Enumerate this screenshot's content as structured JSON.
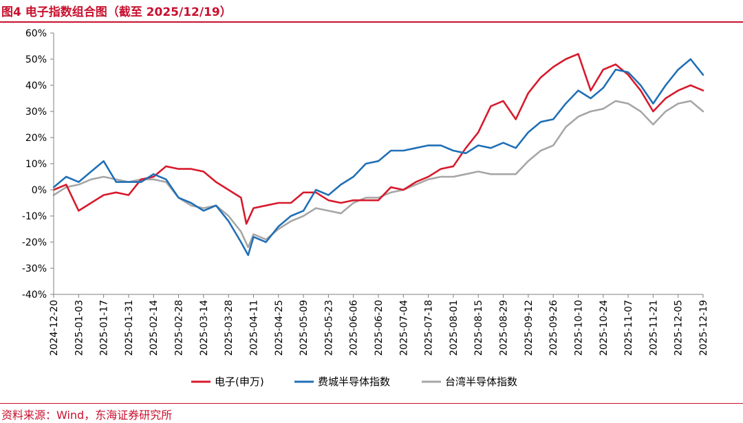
{
  "header": {
    "title": "图4 电子指数组合图（截至 2025/12/19）"
  },
  "footer": {
    "source": "资料来源：Wind，东海证券研究所"
  },
  "chart_data": {
    "type": "line",
    "title": "图4 电子指数组合图（截至 2025/12/19）",
    "xlabel": "",
    "ylabel": "",
    "ylim": [
      -40,
      60
    ],
    "y_ticks": [
      60,
      50,
      40,
      30,
      20,
      10,
      0,
      -10,
      -20,
      -30,
      -40
    ],
    "y_tick_labels": [
      "60%",
      "50%",
      "40%",
      "30%",
      "20%",
      "10%",
      "0%",
      "-10%",
      "-20%",
      "-30%",
      "-40%"
    ],
    "x_tick_labels": [
      "2024-12-20",
      "2025-01-03",
      "2025-01-17",
      "2025-01-31",
      "2025-02-14",
      "2025-02-28",
      "2025-03-14",
      "2025-03-28",
      "2025-04-11",
      "2025-04-25",
      "2025-05-09",
      "2025-05-23",
      "2025-06-06",
      "2025-06-20",
      "2025-07-04",
      "2025-07-18",
      "2025-08-01",
      "2025-08-15",
      "2025-08-29",
      "2025-09-12",
      "2025-09-26",
      "2025-10-10",
      "2025-10-24",
      "2025-11-07",
      "2025-11-21",
      "2025-12-05",
      "2025-12-19"
    ],
    "x_start": "2024-12-20",
    "x_end": "2025-12-19",
    "legend_position": "bottom",
    "grid": false,
    "series": [
      {
        "name": "电子(申万)",
        "color": "#d7192c",
        "points": [
          [
            "2024-12-20",
            0
          ],
          [
            "2024-12-27",
            2
          ],
          [
            "2025-01-03",
            -8
          ],
          [
            "2025-01-10",
            -5
          ],
          [
            "2025-01-17",
            -2
          ],
          [
            "2025-01-24",
            -1
          ],
          [
            "2025-01-31",
            -2
          ],
          [
            "2025-02-07",
            4
          ],
          [
            "2025-02-14",
            5
          ],
          [
            "2025-02-21",
            9
          ],
          [
            "2025-02-28",
            8
          ],
          [
            "2025-03-07",
            8
          ],
          [
            "2025-03-14",
            7
          ],
          [
            "2025-03-21",
            3
          ],
          [
            "2025-03-28",
            0
          ],
          [
            "2025-04-04",
            -3
          ],
          [
            "2025-04-07",
            -13
          ],
          [
            "2025-04-11",
            -7
          ],
          [
            "2025-04-18",
            -6
          ],
          [
            "2025-04-25",
            -5
          ],
          [
            "2025-05-02",
            -5
          ],
          [
            "2025-05-09",
            -1
          ],
          [
            "2025-05-16",
            -1
          ],
          [
            "2025-05-23",
            -4
          ],
          [
            "2025-05-30",
            -5
          ],
          [
            "2025-06-06",
            -4
          ],
          [
            "2025-06-13",
            -4
          ],
          [
            "2025-06-20",
            -4
          ],
          [
            "2025-06-27",
            1
          ],
          [
            "2025-07-04",
            0
          ],
          [
            "2025-07-11",
            3
          ],
          [
            "2025-07-18",
            5
          ],
          [
            "2025-07-25",
            8
          ],
          [
            "2025-08-01",
            9
          ],
          [
            "2025-08-08",
            16
          ],
          [
            "2025-08-15",
            22
          ],
          [
            "2025-08-22",
            32
          ],
          [
            "2025-08-29",
            34
          ],
          [
            "2025-09-05",
            27
          ],
          [
            "2025-09-12",
            37
          ],
          [
            "2025-09-19",
            43
          ],
          [
            "2025-09-26",
            47
          ],
          [
            "2025-10-03",
            50
          ],
          [
            "2025-10-10",
            52
          ],
          [
            "2025-10-17",
            38
          ],
          [
            "2025-10-24",
            46
          ],
          [
            "2025-10-31",
            48
          ],
          [
            "2025-11-07",
            44
          ],
          [
            "2025-11-14",
            38
          ],
          [
            "2025-11-21",
            30
          ],
          [
            "2025-11-28",
            35
          ],
          [
            "2025-12-05",
            38
          ],
          [
            "2025-12-12",
            40
          ],
          [
            "2025-12-19",
            38
          ]
        ]
      },
      {
        "name": "费城半导体指数",
        "color": "#1f6fb6",
        "points": [
          [
            "2024-12-20",
            1
          ],
          [
            "2024-12-27",
            5
          ],
          [
            "2025-01-03",
            3
          ],
          [
            "2025-01-10",
            7
          ],
          [
            "2025-01-17",
            11
          ],
          [
            "2025-01-24",
            3
          ],
          [
            "2025-01-31",
            3
          ],
          [
            "2025-02-07",
            3
          ],
          [
            "2025-02-14",
            6
          ],
          [
            "2025-02-21",
            4
          ],
          [
            "2025-02-28",
            -3
          ],
          [
            "2025-03-07",
            -5
          ],
          [
            "2025-03-14",
            -8
          ],
          [
            "2025-03-21",
            -6
          ],
          [
            "2025-03-28",
            -12
          ],
          [
            "2025-04-04",
            -20
          ],
          [
            "2025-04-08",
            -25
          ],
          [
            "2025-04-11",
            -18
          ],
          [
            "2025-04-18",
            -20
          ],
          [
            "2025-04-25",
            -14
          ],
          [
            "2025-05-02",
            -10
          ],
          [
            "2025-05-09",
            -8
          ],
          [
            "2025-05-16",
            0
          ],
          [
            "2025-05-23",
            -2
          ],
          [
            "2025-05-30",
            2
          ],
          [
            "2025-06-06",
            5
          ],
          [
            "2025-06-13",
            10
          ],
          [
            "2025-06-20",
            11
          ],
          [
            "2025-06-27",
            15
          ],
          [
            "2025-07-04",
            15
          ],
          [
            "2025-07-11",
            16
          ],
          [
            "2025-07-18",
            17
          ],
          [
            "2025-07-25",
            17
          ],
          [
            "2025-08-01",
            15
          ],
          [
            "2025-08-08",
            14
          ],
          [
            "2025-08-15",
            17
          ],
          [
            "2025-08-22",
            16
          ],
          [
            "2025-08-29",
            18
          ],
          [
            "2025-09-05",
            16
          ],
          [
            "2025-09-12",
            22
          ],
          [
            "2025-09-19",
            26
          ],
          [
            "2025-09-26",
            27
          ],
          [
            "2025-10-03",
            33
          ],
          [
            "2025-10-10",
            38
          ],
          [
            "2025-10-17",
            35
          ],
          [
            "2025-10-24",
            39
          ],
          [
            "2025-10-31",
            46
          ],
          [
            "2025-11-07",
            45
          ],
          [
            "2025-11-14",
            40
          ],
          [
            "2025-11-21",
            33
          ],
          [
            "2025-11-28",
            40
          ],
          [
            "2025-12-05",
            46
          ],
          [
            "2025-12-12",
            50
          ],
          [
            "2025-12-19",
            44
          ]
        ]
      },
      {
        "name": "台湾半导体指数",
        "color": "#a6a6a6",
        "points": [
          [
            "2024-12-20",
            -2
          ],
          [
            "2024-12-27",
            1
          ],
          [
            "2025-01-03",
            2
          ],
          [
            "2025-01-10",
            4
          ],
          [
            "2025-01-17",
            5
          ],
          [
            "2025-01-24",
            4
          ],
          [
            "2025-01-31",
            3
          ],
          [
            "2025-02-07",
            4
          ],
          [
            "2025-02-14",
            4
          ],
          [
            "2025-02-21",
            3
          ],
          [
            "2025-02-28",
            -3
          ],
          [
            "2025-03-07",
            -6
          ],
          [
            "2025-03-14",
            -7
          ],
          [
            "2025-03-21",
            -6
          ],
          [
            "2025-03-28",
            -10
          ],
          [
            "2025-04-04",
            -16
          ],
          [
            "2025-04-08",
            -22
          ],
          [
            "2025-04-11",
            -17
          ],
          [
            "2025-04-18",
            -19
          ],
          [
            "2025-04-25",
            -15
          ],
          [
            "2025-05-02",
            -12
          ],
          [
            "2025-05-09",
            -10
          ],
          [
            "2025-05-16",
            -7
          ],
          [
            "2025-05-23",
            -8
          ],
          [
            "2025-05-30",
            -9
          ],
          [
            "2025-06-06",
            -5
          ],
          [
            "2025-06-13",
            -3
          ],
          [
            "2025-06-20",
            -3
          ],
          [
            "2025-06-27",
            -1
          ],
          [
            "2025-07-04",
            0
          ],
          [
            "2025-07-11",
            2
          ],
          [
            "2025-07-18",
            4
          ],
          [
            "2025-07-25",
            5
          ],
          [
            "2025-08-01",
            5
          ],
          [
            "2025-08-08",
            6
          ],
          [
            "2025-08-15",
            7
          ],
          [
            "2025-08-22",
            6
          ],
          [
            "2025-08-29",
            6
          ],
          [
            "2025-09-05",
            6
          ],
          [
            "2025-09-12",
            11
          ],
          [
            "2025-09-19",
            15
          ],
          [
            "2025-09-26",
            17
          ],
          [
            "2025-10-03",
            24
          ],
          [
            "2025-10-10",
            28
          ],
          [
            "2025-10-17",
            30
          ],
          [
            "2025-10-24",
            31
          ],
          [
            "2025-10-31",
            34
          ],
          [
            "2025-11-07",
            33
          ],
          [
            "2025-11-14",
            30
          ],
          [
            "2025-11-21",
            25
          ],
          [
            "2025-11-28",
            30
          ],
          [
            "2025-12-05",
            33
          ],
          [
            "2025-12-12",
            34
          ],
          [
            "2025-12-19",
            30
          ]
        ]
      }
    ]
  }
}
